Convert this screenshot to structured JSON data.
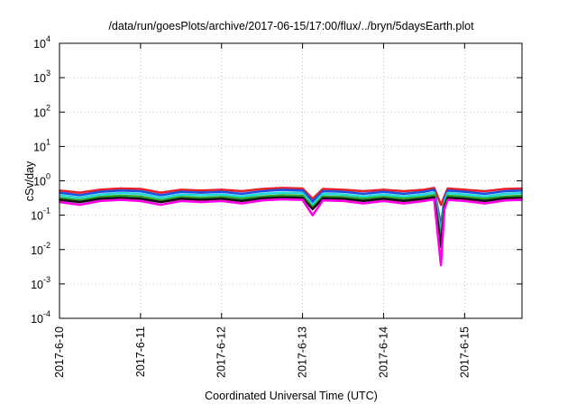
{
  "chart_data": {
    "type": "line",
    "title": "/data/run/goesPlots/archive/2017-06-15/17:00/flux/../bryn/5daysEarth.plot",
    "xlabel": "Coordinated Universal Time (UTC)",
    "ylabel": "cSv/day",
    "y_scale": "log",
    "ylim": [
      0.0001,
      10000
    ],
    "xlim": [
      "2017-06-10 00:00",
      "2017-06-15 17:00"
    ],
    "grid": true,
    "legend": "none",
    "x_ticks": [
      "2017-6-10",
      "2017-6-11",
      "2017-6-12",
      "2017-6-13",
      "2017-6-14",
      "2017-6-15"
    ],
    "y_ticks": [
      {
        "base": "10",
        "exp": "-4"
      },
      {
        "base": "10",
        "exp": "-3"
      },
      {
        "base": "10",
        "exp": "-2"
      },
      {
        "base": "10",
        "exp": "-1"
      },
      {
        "base": "10",
        "exp": "0"
      },
      {
        "base": "10",
        "exp": "1"
      },
      {
        "base": "10",
        "exp": "2"
      },
      {
        "base": "10",
        "exp": "3"
      },
      {
        "base": "10",
        "exp": "4"
      }
    ],
    "x": [
      "2017-06-10 00:00",
      "2017-06-10 06:00",
      "2017-06-10 12:00",
      "2017-06-10 18:00",
      "2017-06-11 00:00",
      "2017-06-11 06:00",
      "2017-06-11 12:00",
      "2017-06-11 18:00",
      "2017-06-12 00:00",
      "2017-06-12 06:00",
      "2017-06-12 12:00",
      "2017-06-12 18:00",
      "2017-06-13 00:00",
      "2017-06-13 03:00",
      "2017-06-13 06:00",
      "2017-06-13 12:00",
      "2017-06-13 18:00",
      "2017-06-14 00:00",
      "2017-06-14 06:00",
      "2017-06-14 12:00",
      "2017-06-14 15:00",
      "2017-06-14 17:00",
      "2017-06-14 18:00",
      "2017-06-14 19:00",
      "2017-06-15 00:00",
      "2017-06-15 06:00",
      "2017-06-15 12:00",
      "2017-06-15 17:00"
    ],
    "series": [
      {
        "color": "#e8202a",
        "values": [
          0.52,
          0.45,
          0.55,
          0.6,
          0.58,
          0.45,
          0.55,
          0.52,
          0.55,
          0.5,
          0.58,
          0.62,
          0.6,
          0.3,
          0.58,
          0.55,
          0.5,
          0.55,
          0.5,
          0.55,
          0.62,
          0.2,
          0.35,
          0.6,
          0.55,
          0.5,
          0.58,
          0.6
        ]
      },
      {
        "color": "#1f4fe0",
        "values": [
          0.45,
          0.38,
          0.48,
          0.52,
          0.5,
          0.38,
          0.48,
          0.45,
          0.48,
          0.42,
          0.5,
          0.55,
          0.52,
          0.25,
          0.5,
          0.48,
          0.42,
          0.48,
          0.42,
          0.48,
          0.55,
          0.05,
          0.3,
          0.52,
          0.48,
          0.42,
          0.5,
          0.52
        ]
      },
      {
        "color": "#22d8d8",
        "values": [
          0.38,
          0.32,
          0.4,
          0.44,
          0.42,
          0.32,
          0.4,
          0.38,
          0.4,
          0.35,
          0.42,
          0.45,
          0.44,
          0.2,
          0.42,
          0.4,
          0.35,
          0.4,
          0.35,
          0.4,
          0.45,
          0.03,
          0.25,
          0.44,
          0.4,
          0.35,
          0.42,
          0.44
        ]
      },
      {
        "color": "#2ca02c",
        "values": [
          0.32,
          0.27,
          0.34,
          0.37,
          0.35,
          0.27,
          0.34,
          0.32,
          0.34,
          0.3,
          0.35,
          0.38,
          0.37,
          0.17,
          0.35,
          0.34,
          0.3,
          0.34,
          0.3,
          0.34,
          0.38,
          0.02,
          0.21,
          0.37,
          0.34,
          0.3,
          0.35,
          0.37
        ]
      },
      {
        "color": "#111111",
        "values": [
          0.28,
          0.24,
          0.3,
          0.32,
          0.3,
          0.24,
          0.3,
          0.28,
          0.3,
          0.26,
          0.31,
          0.33,
          0.32,
          0.15,
          0.31,
          0.3,
          0.26,
          0.3,
          0.26,
          0.3,
          0.33,
          0.012,
          0.18,
          0.32,
          0.3,
          0.26,
          0.31,
          0.32
        ]
      },
      {
        "color": "#ff00e6",
        "values": [
          0.24,
          0.2,
          0.26,
          0.28,
          0.26,
          0.2,
          0.26,
          0.24,
          0.26,
          0.22,
          0.27,
          0.29,
          0.28,
          0.1,
          0.27,
          0.26,
          0.22,
          0.26,
          0.22,
          0.26,
          0.29,
          0.0035,
          0.15,
          0.28,
          0.26,
          0.22,
          0.27,
          0.28
        ]
      }
    ]
  }
}
